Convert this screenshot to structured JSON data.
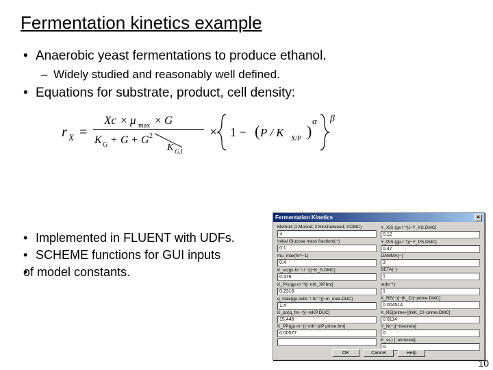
{
  "title": "Fermentation kinetics example",
  "bullets_top": [
    {
      "level": 1,
      "text": "Anaerobic yeast fermentations to produce ethanol."
    },
    {
      "level": 2,
      "text": "Widely studied and reasonably well defined."
    },
    {
      "level": 1,
      "text": "Equations for substrate, product, cell density:"
    }
  ],
  "bullets_bottom": [
    {
      "level": 1,
      "text": "Implemented in FLUENT with UDFs."
    },
    {
      "level": 1,
      "text": "SCHEME functions for GUI inputs"
    },
    {
      "level": 1,
      "text": "of model constants.",
      "no_marker": true
    }
  ],
  "equation": {
    "left_numer": "Xc × μ_max × G",
    "left_denom_a": "K_G + G + G²",
    "left_denom_b": "K_G,I",
    "brace_inner": "1 − (P / K_X/P)",
    "exponent": "β",
    "result": "r_X ="
  },
  "dialog": {
    "title": "Fermentation Kinetics",
    "close": "✕",
    "fields": [
      {
        "label": "Method (1:Monod; 2:Hinshelwood; 3:DMC)",
        "value": "3"
      },
      {
        "label": "Y_X/S (gx·l⁻¹)[−Y_XS.DMC]",
        "value": "0.12"
      },
      {
        "label": "Initial Glucose mass fraction|(−)",
        "value": "0.1"
      },
      {
        "label": "Y_P/S (gp·l⁻¹)[−Y_PS.DMC]",
        "value": "0.47"
      },
      {
        "label": "mu_max(hr^−1)",
        "value": "0.4"
      },
      {
        "label": "GAMMA(−)",
        "value": "3"
      },
      {
        "label": "K_sc(gs·hr⁻¹·l⁻¹)[−K_S.DMC]",
        "value": "0.476"
      },
      {
        "label": "BETA(−)",
        "value": "1"
      },
      {
        "label": "K_P/x(gp·m⁻³)[−mK_XP.fmt]",
        "value": "0.2316"
      },
      {
        "label": "m(hr⁻¹)",
        "value": "1"
      },
      {
        "label": "q_max(gp·cells⁻¹·hr⁻¹)[−m_max.DUC]",
        "value": "1.4"
      },
      {
        "label": "K_RE(−)[−|K_CI|−primе.DMC]",
        "value": "0.004514"
      },
      {
        "label": "K_po(q_fm−³)[−mKP.DUC]",
        "value": "15.446"
      },
      {
        "label": "K_RE[primе+][WK_CI−primе.DMC]",
        "value": "0.0114"
      },
      {
        "label": "K_PP(gp·m−)[−mK−p/P primе.fmt]",
        "value": "0.00577"
      },
      {
        "label": "Y_N(−)[−tneoreia]",
        "value": "0"
      },
      {
        "label": "",
        "value": ""
      },
      {
        "label": "K_s(-) [ 'anmosia]",
        "value": "0"
      }
    ],
    "buttons": [
      "OK",
      "Cancel",
      "Help"
    ]
  },
  "page_number": "10",
  "colors": {
    "bg": "#ffffff",
    "text": "#000000",
    "dialog_bg": "#d6d3ce",
    "titlebar_start": "#0a246a",
    "titlebar_end": "#a6caf0"
  }
}
